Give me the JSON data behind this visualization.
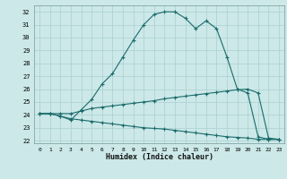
{
  "xlabel": "Humidex (Indice chaleur)",
  "bg_color": "#cce8e8",
  "grid_color": "#aacfcf",
  "line_color": "#1a6b6b",
  "xlim": [
    -0.5,
    23.5
  ],
  "ylim": [
    21.8,
    32.5
  ],
  "yticks": [
    22,
    23,
    24,
    25,
    26,
    27,
    28,
    29,
    30,
    31,
    32
  ],
  "xticks": [
    0,
    1,
    2,
    3,
    4,
    5,
    6,
    7,
    8,
    9,
    10,
    11,
    12,
    13,
    14,
    15,
    16,
    17,
    18,
    19,
    20,
    21,
    22,
    23
  ],
  "line1_x": [
    0,
    1,
    2,
    3,
    4,
    5,
    6,
    7,
    8,
    9,
    10,
    11,
    12,
    13,
    14,
    15,
    16,
    17,
    18,
    19,
    20,
    21,
    22,
    23
  ],
  "line1_y": [
    24.1,
    24.1,
    23.9,
    23.6,
    24.4,
    25.2,
    26.4,
    27.2,
    28.5,
    29.8,
    31.0,
    31.8,
    32.0,
    32.0,
    31.5,
    30.7,
    31.3,
    30.7,
    28.5,
    26.0,
    25.7,
    22.3,
    22.1,
    22.1
  ],
  "line2_x": [
    0,
    1,
    2,
    3,
    4,
    5,
    6,
    7,
    8,
    9,
    10,
    11,
    12,
    13,
    14,
    15,
    16,
    17,
    18,
    19,
    20,
    21,
    22,
    23
  ],
  "line2_y": [
    24.1,
    24.1,
    24.1,
    24.1,
    24.3,
    24.5,
    24.6,
    24.7,
    24.8,
    24.9,
    25.0,
    25.1,
    25.25,
    25.35,
    25.45,
    25.55,
    25.65,
    25.75,
    25.85,
    25.95,
    26.0,
    25.7,
    22.2,
    22.1
  ],
  "line3_x": [
    0,
    1,
    2,
    3,
    4,
    5,
    6,
    7,
    8,
    9,
    10,
    11,
    12,
    13,
    14,
    15,
    16,
    17,
    18,
    19,
    20,
    21,
    22,
    23
  ],
  "line3_y": [
    24.1,
    24.1,
    23.9,
    23.7,
    23.6,
    23.5,
    23.4,
    23.3,
    23.2,
    23.1,
    23.0,
    22.95,
    22.9,
    22.8,
    22.7,
    22.6,
    22.5,
    22.4,
    22.3,
    22.25,
    22.2,
    22.1,
    22.1,
    22.1
  ]
}
